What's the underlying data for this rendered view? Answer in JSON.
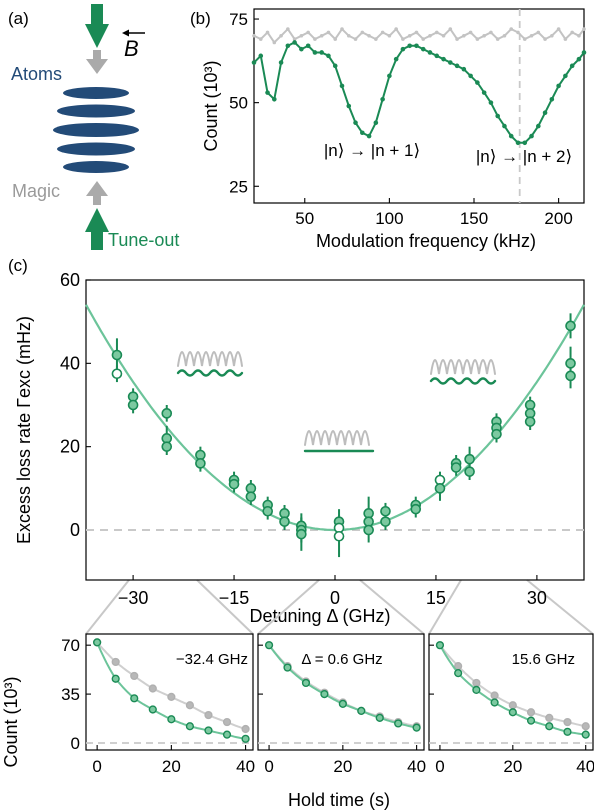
{
  "colors": {
    "green": "#1a8a55",
    "green_light": "#6cc49a",
    "green_marker_fill": "#7cc9a0",
    "gray": "#b3b3b3",
    "gray_dark": "#9a9a9a",
    "blue": "#234b78",
    "dashed": "#c9c9c9"
  },
  "panel_a": {
    "label": "(a)",
    "atoms_label": "Atoms",
    "b_label": "B",
    "magic_label": "Magic",
    "tuneout_label": "Tune-out"
  },
  "chart_data": [
    {
      "id": "b",
      "panel_label": "(b)",
      "type": "line",
      "xlabel": "Modulation frequency (kHz)",
      "ylabel": "Count (10³)",
      "xlim": [
        20,
        215
      ],
      "ylim": [
        20,
        78
      ],
      "xticks": [
        50,
        100,
        150,
        200
      ],
      "yticks": [
        25,
        50,
        75
      ],
      "vline": 177,
      "annotations": [
        "|n⟩ → |n + 1⟩",
        "|n⟩ → |n + 2⟩"
      ],
      "series": [
        {
          "color": "gray",
          "x": [
            20,
            24,
            28,
            32,
            36,
            40,
            44,
            48,
            52,
            56,
            60,
            64,
            68,
            72,
            76,
            80,
            84,
            88,
            92,
            96,
            100,
            104,
            108,
            112,
            116,
            120,
            124,
            128,
            132,
            136,
            140,
            144,
            148,
            152,
            156,
            160,
            164,
            168,
            172,
            176,
            180,
            184,
            188,
            192,
            196,
            200,
            204,
            208,
            212,
            215
          ],
          "y": [
            70,
            69,
            71,
            68,
            70,
            72,
            69,
            70,
            71,
            69,
            70,
            71,
            69,
            72,
            70,
            69,
            71,
            70,
            69,
            71,
            70,
            72,
            69,
            70,
            71,
            69,
            70,
            71,
            70,
            72,
            69,
            70,
            71,
            69,
            70,
            71,
            69,
            70,
            72,
            71,
            69,
            70,
            71,
            69,
            70,
            72,
            69,
            71,
            70,
            72
          ]
        },
        {
          "color": "green",
          "x": [
            20,
            24,
            28,
            32,
            36,
            40,
            44,
            48,
            52,
            56,
            60,
            64,
            68,
            72,
            76,
            80,
            84,
            88,
            92,
            96,
            100,
            104,
            108,
            112,
            116,
            120,
            124,
            128,
            132,
            136,
            140,
            144,
            148,
            152,
            156,
            160,
            164,
            168,
            172,
            176,
            180,
            184,
            188,
            192,
            196,
            200,
            204,
            208,
            212,
            215
          ],
          "y": [
            62,
            64,
            53,
            51,
            62,
            67,
            68,
            66,
            67,
            65,
            65,
            64,
            61,
            55,
            49,
            44,
            41,
            40,
            44,
            51,
            58,
            63,
            66,
            67,
            67,
            66,
            65,
            64,
            63,
            62,
            61,
            60,
            58,
            56,
            53,
            50,
            46,
            43,
            40,
            38,
            38,
            40,
            43,
            47,
            51,
            55,
            58,
            61,
            63,
            65
          ]
        }
      ]
    },
    {
      "id": "c",
      "panel_label": "(c)",
      "type": "scatter",
      "xlabel": "Detuning Δ (GHz)",
      "ylabel": "Excess loss rate Γexc (mHz)",
      "xlim": [
        -37,
        37
      ],
      "ylim": [
        -12,
        60
      ],
      "xticks": [
        -30,
        -15,
        0,
        15,
        30
      ],
      "yticks": [
        0,
        20,
        40,
        60
      ],
      "fit_coefficient": 0.0395,
      "points": [
        {
          "x": -32.4,
          "y": 42,
          "err": 4,
          "hollow": false
        },
        {
          "x": -32.4,
          "y": 37.5,
          "err": 2,
          "hollow": true
        },
        {
          "x": -30,
          "y": 32,
          "err": 2,
          "hollow": false
        },
        {
          "x": -30,
          "y": 30,
          "err": 2,
          "hollow": false
        },
        {
          "x": -25,
          "y": 28,
          "err": 2,
          "hollow": false
        },
        {
          "x": -25,
          "y": 22,
          "err": 3,
          "hollow": false
        },
        {
          "x": -25,
          "y": 20,
          "err": 2,
          "hollow": false
        },
        {
          "x": -20,
          "y": 18,
          "err": 2,
          "hollow": false
        },
        {
          "x": -20,
          "y": 16,
          "err": 2,
          "hollow": false
        },
        {
          "x": -15,
          "y": 12,
          "err": 2,
          "hollow": false
        },
        {
          "x": -15,
          "y": 11,
          "err": 2,
          "hollow": false
        },
        {
          "x": -12.5,
          "y": 10,
          "err": 2,
          "hollow": false
        },
        {
          "x": -12.5,
          "y": 8,
          "err": 2,
          "hollow": false
        },
        {
          "x": -10,
          "y": 6,
          "err": 2,
          "hollow": false
        },
        {
          "x": -10,
          "y": 4.5,
          "err": 2,
          "hollow": false
        },
        {
          "x": -7.5,
          "y": 4,
          "err": 2,
          "hollow": false
        },
        {
          "x": -7.5,
          "y": 2,
          "err": 2,
          "hollow": false
        },
        {
          "x": -5,
          "y": 1,
          "err": 3,
          "hollow": false
        },
        {
          "x": -5,
          "y": 0,
          "err": 3,
          "hollow": false
        },
        {
          "x": -5,
          "y": -1,
          "err": 4,
          "hollow": false
        },
        {
          "x": 0.6,
          "y": 2,
          "err": 3,
          "hollow": false
        },
        {
          "x": 0.6,
          "y": 0.5,
          "err": 3,
          "hollow": true
        },
        {
          "x": 0.6,
          "y": -1.5,
          "err": 5,
          "hollow": true
        },
        {
          "x": 5,
          "y": 4,
          "err": 4,
          "hollow": false
        },
        {
          "x": 5,
          "y": 2,
          "err": 3,
          "hollow": false
        },
        {
          "x": 5,
          "y": 0,
          "err": 3,
          "hollow": false
        },
        {
          "x": 7.5,
          "y": 4.5,
          "err": 2,
          "hollow": false
        },
        {
          "x": 7.5,
          "y": 2,
          "err": 2,
          "hollow": false
        },
        {
          "x": 12,
          "y": 6,
          "err": 2,
          "hollow": false
        },
        {
          "x": 12,
          "y": 5,
          "err": 2,
          "hollow": false
        },
        {
          "x": 15.6,
          "y": 12,
          "err": 2,
          "hollow": true
        },
        {
          "x": 15.6,
          "y": 10,
          "err": 3,
          "hollow": false
        },
        {
          "x": 18,
          "y": 16,
          "err": 2,
          "hollow": false
        },
        {
          "x": 18,
          "y": 15,
          "err": 2,
          "hollow": false
        },
        {
          "x": 20,
          "y": 17,
          "err": 3,
          "hollow": false
        },
        {
          "x": 20,
          "y": 14,
          "err": 2,
          "hollow": false
        },
        {
          "x": 24,
          "y": 26,
          "err": 2,
          "hollow": false
        },
        {
          "x": 24,
          "y": 24.5,
          "err": 2,
          "hollow": false
        },
        {
          "x": 24,
          "y": 23,
          "err": 2,
          "hollow": false
        },
        {
          "x": 29,
          "y": 30,
          "err": 2,
          "hollow": false
        },
        {
          "x": 29,
          "y": 28,
          "err": 3,
          "hollow": false
        },
        {
          "x": 29,
          "y": 26,
          "err": 2,
          "hollow": false
        },
        {
          "x": 35,
          "y": 49,
          "err": 3,
          "hollow": false
        },
        {
          "x": 35,
          "y": 40,
          "err": 4,
          "hollow": false
        },
        {
          "x": 35,
          "y": 37,
          "err": 3,
          "hollow": false
        }
      ]
    },
    {
      "id": "d1",
      "type": "line",
      "label": "−32.4 GHz",
      "xlabel": "Hold time (s)",
      "ylabel": "Count (10³)",
      "xlim": [
        -3,
        42
      ],
      "ylim": [
        -5,
        78
      ],
      "xticks": [
        0,
        20,
        40
      ],
      "yticks": [
        0,
        35,
        70
      ],
      "series": [
        {
          "color": "gray",
          "x": [
            0,
            5,
            10,
            15,
            20,
            25,
            30,
            35,
            40
          ],
          "y": [
            72,
            58,
            48,
            39,
            33,
            27,
            20,
            15,
            10
          ]
        },
        {
          "color": "green",
          "x": [
            0,
            5,
            10,
            15,
            20,
            25,
            30,
            35,
            40
          ],
          "y": [
            72,
            46,
            32,
            24,
            17,
            12,
            9,
            6,
            3
          ]
        }
      ]
    },
    {
      "id": "d2",
      "type": "line",
      "label": "Δ = 0.6 GHz",
      "xlabel": "Hold time (s)",
      "xlim": [
        -3,
        42
      ],
      "ylim": [
        -5,
        78
      ],
      "xticks": [
        0,
        20,
        40
      ],
      "yticks": [
        0,
        35,
        70
      ],
      "series": [
        {
          "color": "gray",
          "x": [
            0,
            5,
            10,
            15,
            20,
            25,
            30,
            35,
            40
          ],
          "y": [
            70,
            55,
            44,
            36,
            29,
            23,
            19,
            15,
            12
          ]
        },
        {
          "color": "green",
          "x": [
            0,
            5,
            10,
            15,
            20,
            25,
            30,
            35,
            40
          ],
          "y": [
            70,
            54,
            43,
            35,
            28,
            23,
            18,
            14,
            11
          ]
        }
      ]
    },
    {
      "id": "d3",
      "type": "line",
      "label": "15.6 GHz",
      "xlabel": "Hold time (s)",
      "xlim": [
        -3,
        42
      ],
      "ylim": [
        -5,
        78
      ],
      "xticks": [
        0,
        20,
        40
      ],
      "yticks": [
        0,
        35,
        70
      ],
      "series": [
        {
          "color": "gray",
          "x": [
            0,
            5,
            10,
            15,
            20,
            25,
            30,
            35,
            40
          ],
          "y": [
            70,
            55,
            43,
            34,
            27,
            22,
            18,
            15,
            12
          ]
        },
        {
          "color": "green",
          "x": [
            0,
            5,
            10,
            15,
            20,
            25,
            30,
            35,
            40
          ],
          "y": [
            70,
            50,
            38,
            29,
            22,
            16,
            12,
            8,
            6
          ]
        }
      ]
    }
  ],
  "shared": {
    "hold_xlabel": "Hold time (s)"
  }
}
